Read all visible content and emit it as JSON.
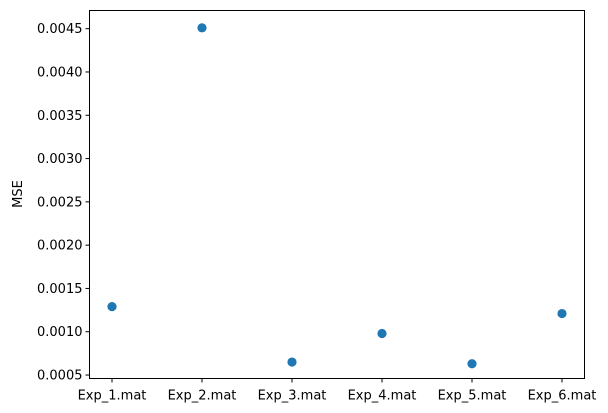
{
  "chart_data": {
    "type": "scatter",
    "title": "",
    "xlabel": "",
    "ylabel": "MSE",
    "categories": [
      "Exp_1.mat",
      "Exp_2.mat",
      "Exp_3.mat",
      "Exp_4.mat",
      "Exp_5.mat",
      "Exp_6.mat"
    ],
    "values": [
      0.00129,
      0.00451,
      0.00065,
      0.00098,
      0.00063,
      0.00121
    ],
    "ylim": [
      0.00046,
      0.00471
    ],
    "yticks": [
      0.0005,
      0.001,
      0.0015,
      0.002,
      0.0025,
      0.003,
      0.0035,
      0.004,
      0.0045
    ],
    "ytick_labels": [
      "0.0005",
      "0.0010",
      "0.0015",
      "0.0020",
      "0.0025",
      "0.0030",
      "0.0035",
      "0.0040",
      "0.0045"
    ],
    "grid": false,
    "marker_color": "#1f77b4"
  }
}
